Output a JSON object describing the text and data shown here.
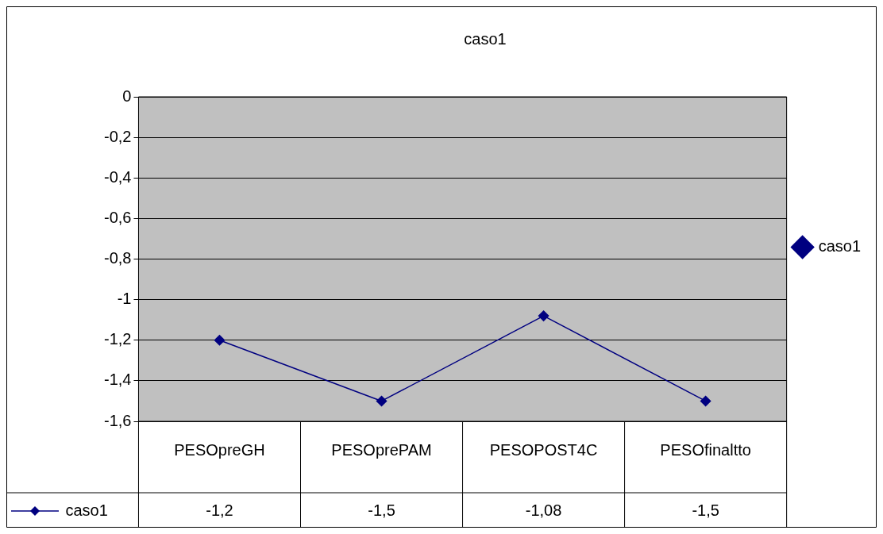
{
  "chart_data": {
    "type": "line",
    "title": "caso1",
    "categories": [
      "PESOpreGH",
      "PESOprePAM",
      "PESOPOST4C",
      "PESOfinaltto"
    ],
    "series": [
      {
        "name": "caso1",
        "color": "#000080",
        "values": [
          -1.2,
          -1.5,
          -1.08,
          -1.5
        ],
        "value_labels": [
          "-1,2",
          "-1,5",
          "-1,08",
          "-1,5"
        ]
      }
    ],
    "ylim": [
      -1.6,
      0
    ],
    "yticks": [
      0,
      {
        "value": -0.2,
        "label": "-0,2"
      },
      {
        "value": -0.4,
        "label": "-0,4"
      },
      {
        "value": -0.6,
        "label": "-0,6"
      },
      {
        "value": -0.8,
        "label": "-0,8"
      },
      -1,
      {
        "value": -1.2,
        "label": "-1,2"
      },
      {
        "value": -1.4,
        "label": "-1,4"
      },
      {
        "value": -1.6,
        "label": "-1,6"
      }
    ],
    "grid": "y",
    "legend": "right",
    "marker": "diamond",
    "line_style": "solid"
  }
}
